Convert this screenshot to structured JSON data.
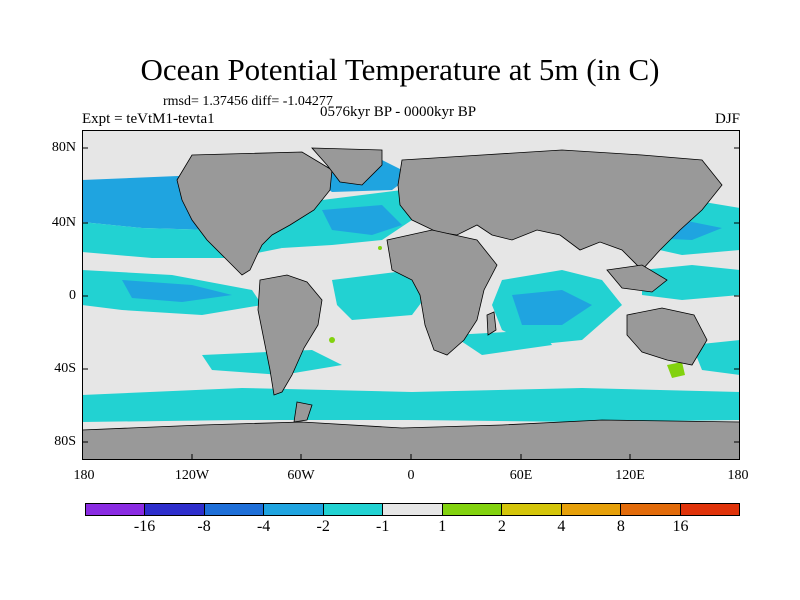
{
  "title": "Ocean Potential Temperature at 5m (in C)",
  "stats": "rmsd= 1.37456 diff= -1.04277",
  "experiment": "Expt = teVtM1-tevta1",
  "period": "0576kyr BP - 0000kyr BP",
  "season": "DJF",
  "y_axis": [
    "80N",
    "40N",
    "0",
    "40S",
    "80S"
  ],
  "x_axis": [
    "180",
    "120W",
    "60W",
    "0",
    "60E",
    "120E",
    "180"
  ],
  "colorbar": {
    "colors": [
      "#8a2be2",
      "#2e2ecc",
      "#1e6fd8",
      "#1fa4e0",
      "#22d2d2",
      "#e6e6e6",
      "#82d20e",
      "#d4c50a",
      "#e6a00a",
      "#e26b0a",
      "#e0330a"
    ],
    "labels": [
      "-16",
      "-8",
      "-4",
      "-2",
      "-1",
      "1",
      "2",
      "4",
      "8",
      "16"
    ]
  },
  "map_colors": {
    "ocean_neutral": "#e6e6e6",
    "land": "#999999",
    "cool_light": "#22d2d2",
    "cool_mid": "#1fa4e0",
    "warm": "#82d20e"
  }
}
